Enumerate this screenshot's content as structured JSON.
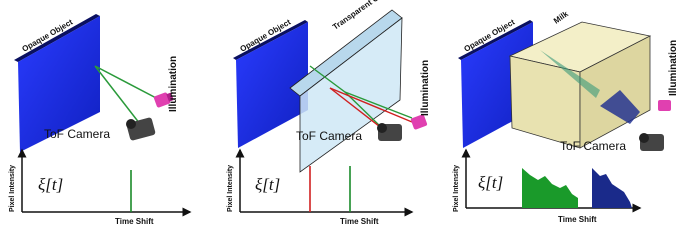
{
  "panels": [
    {
      "labels": {
        "opaque_object": "Opaque Object",
        "illumination": "Illumination",
        "camera": "ToF Camera"
      },
      "plot": {
        "y_label": "Pixel Intensity",
        "signal": "ξ[t]",
        "x_label": "Time Shift"
      }
    },
    {
      "labels": {
        "opaque_object": "Opaque Object",
        "transparent_object": "Transparent Object",
        "illumination": "Illumination",
        "camera": "ToF Camera"
      },
      "plot": {
        "y_label": "Pixel Intensity",
        "signal": "ξ[t]",
        "x_label": "Time Shift"
      }
    },
    {
      "labels": {
        "opaque_object": "Opaque Object",
        "medium": "Milk",
        "illumination": "Illumination",
        "camera": "ToF Camera"
      },
      "plot": {
        "y_label": "Pixel Intensity",
        "signal": "ξ[t]",
        "x_label": "Time Shift"
      }
    }
  ]
}
